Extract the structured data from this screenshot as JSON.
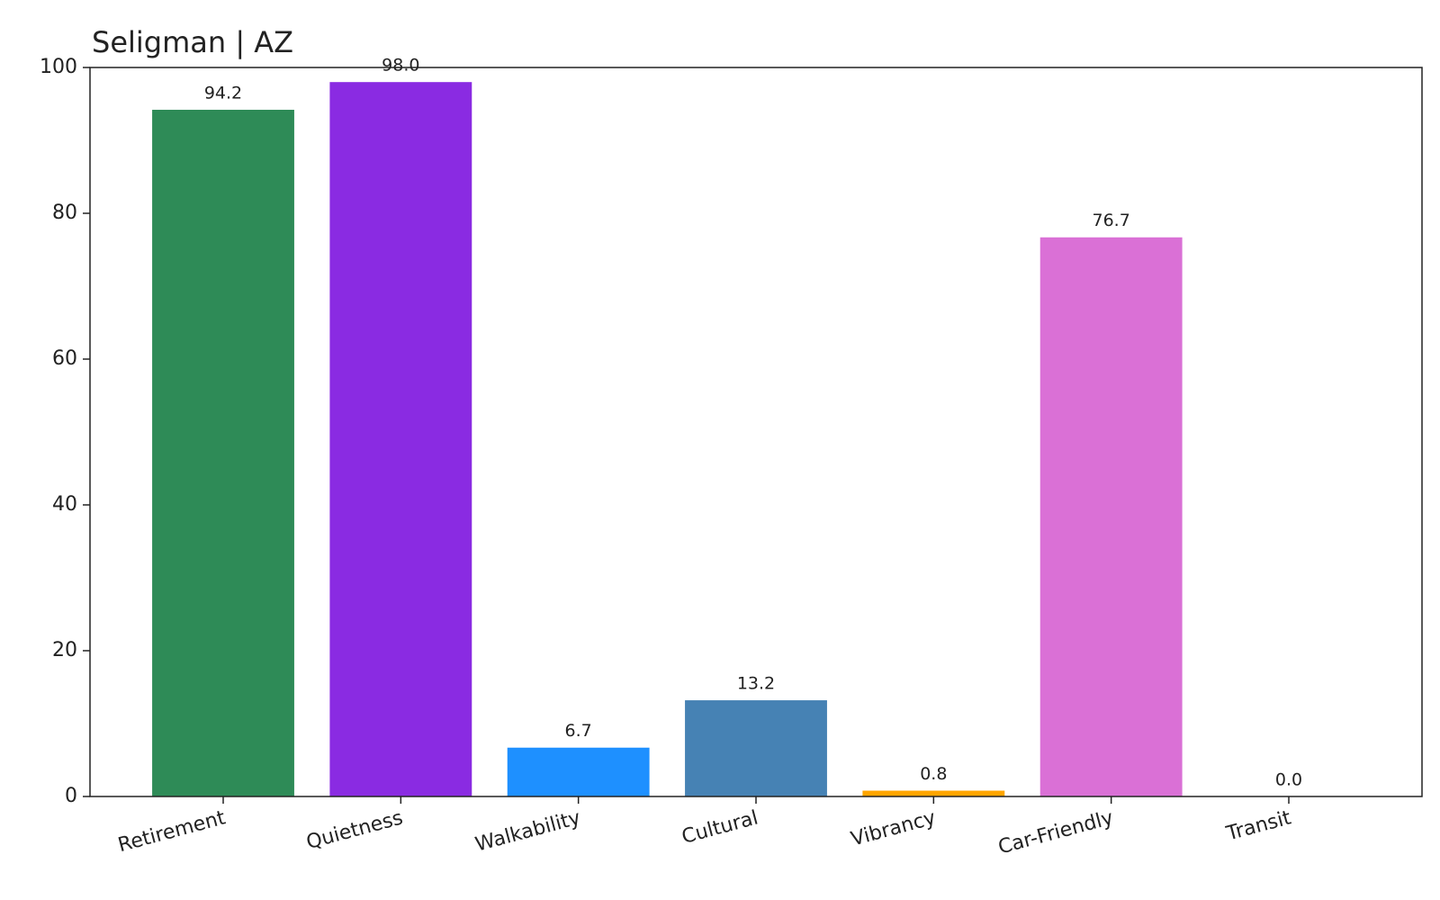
{
  "chart_data": {
    "type": "bar",
    "title": "Seligman | AZ",
    "categories": [
      "Retirement",
      "Quietness",
      "Walkability",
      "Cultural",
      "Vibrancy",
      "Car-Friendly",
      "Transit"
    ],
    "values": [
      94.2,
      98,
      6.7,
      13.2,
      0.8,
      76.7,
      0
    ],
    "value_labels": [
      "94.2",
      "98.0",
      "6.7",
      "13.2",
      "0.8",
      "76.7",
      "0.0"
    ],
    "colors": [
      "#2e8b57",
      "#8a2be2",
      "#1e90ff",
      "#4682b4",
      "#ffa500",
      "#da70d6",
      "#808080"
    ],
    "ylim": [
      0,
      100
    ],
    "yticks": [
      0,
      20,
      40,
      60,
      80,
      100
    ],
    "grid": false
  }
}
